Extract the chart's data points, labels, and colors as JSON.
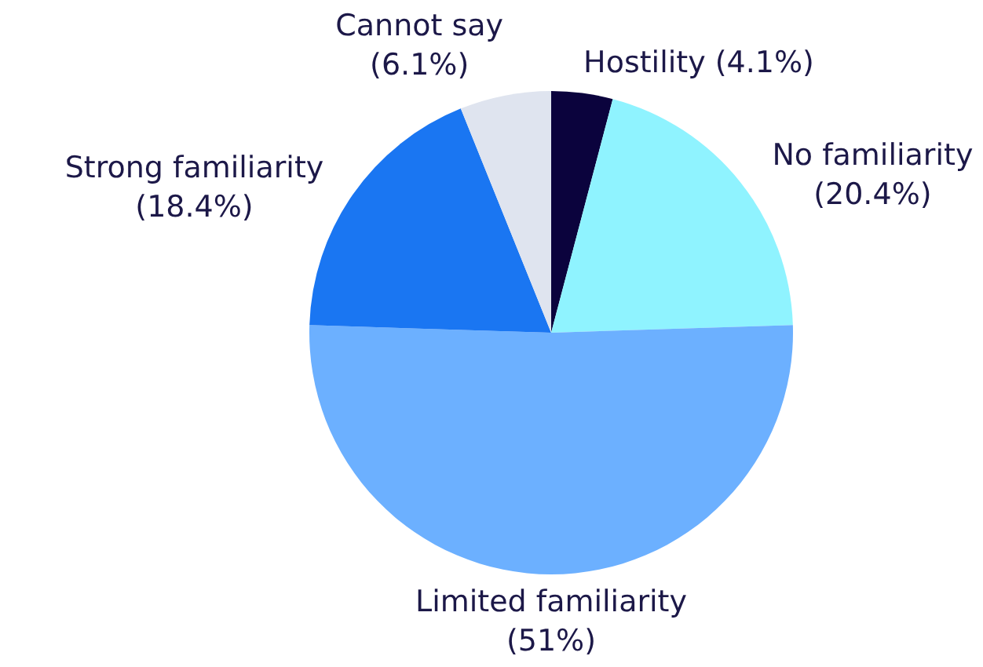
{
  "chart_data": {
    "type": "pie",
    "categories": [
      "Hostility",
      "No familiarity",
      "Limited familiarity",
      "Strong familiarity",
      "Cannot say"
    ],
    "values": [
      4.1,
      20.4,
      51,
      18.4,
      6.1
    ],
    "colors": [
      "#0b033d",
      "#8ff3ff",
      "#6cb0ff",
      "#1a76f2",
      "#dfe4ef"
    ],
    "value_labels": [
      "(4.1%)",
      "(20.4%)",
      "(51%)",
      "(18.4%)",
      "(6.1%)"
    ]
  }
}
